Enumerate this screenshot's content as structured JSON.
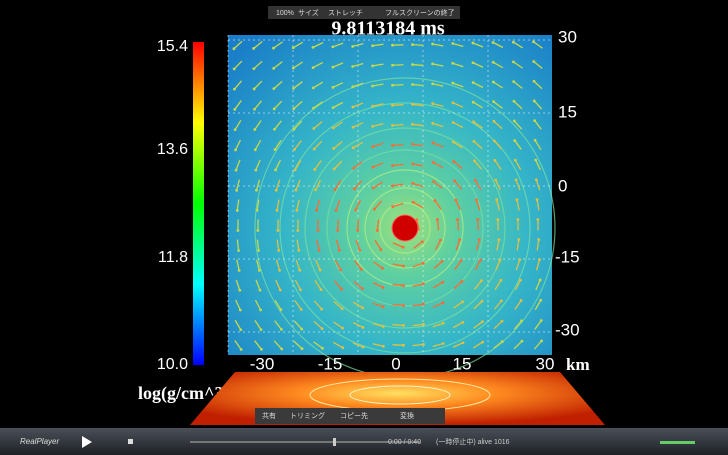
{
  "top_toolbar": {
    "zoom": "100%",
    "size": "サイズ",
    "stretch": "ストレッチ",
    "fullscreen": "フルスクリーンの終了"
  },
  "video": {
    "time": "9.8113184 ms",
    "colorbar": {
      "labels": [
        "15.4",
        "13.6",
        "11.8",
        "10.0"
      ],
      "unit": "log(g/cm^3)"
    },
    "y_axis": [
      "30",
      "15",
      "0",
      "-15",
      "-30"
    ],
    "x_axis": [
      "-30",
      "-15",
      "0",
      "15",
      "30"
    ],
    "x_unit": "km"
  },
  "bottom_toolbar": {
    "share": "共有",
    "trim": "トリミング",
    "copy": "コピー先",
    "convert": "変換"
  },
  "player": {
    "brand": "RealPlayer",
    "position": "0:00 / 0:40",
    "status": "(一時停止中) alive 1016"
  }
}
